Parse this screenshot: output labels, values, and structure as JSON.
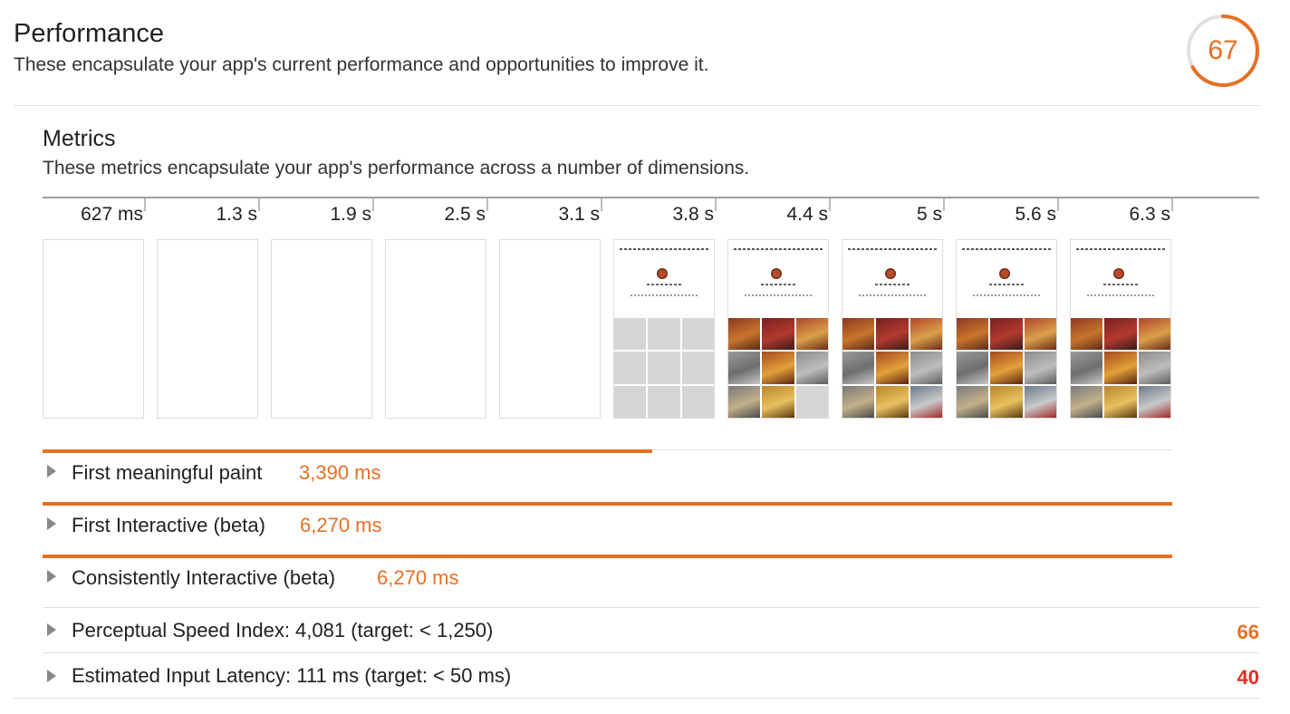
{
  "header": {
    "title": "Performance",
    "description": "These encapsulate your app's current performance and opportunities to improve it.",
    "score": "67",
    "score_fraction": 0.67,
    "score_color": "#e67024"
  },
  "metrics": {
    "title": "Metrics",
    "description": "These metrics encapsulate your app's performance across a number of dimensions."
  },
  "filmstrip": {
    "timestamps": [
      "627 ms",
      "1.3 s",
      "1.9 s",
      "2.5 s",
      "3.1 s",
      "3.8 s",
      "4.4 s",
      "5 s",
      "5.6 s",
      "6.3 s"
    ]
  },
  "timeline_metrics": [
    {
      "label": "First meaningful paint",
      "value": "3,390 ms",
      "fraction": 0.54
    },
    {
      "label": "First Interactive (beta)",
      "value": "6,270 ms",
      "fraction": 1.0
    },
    {
      "label": "Consistently Interactive (beta)",
      "value": "6,270 ms",
      "fraction": 1.0
    }
  ],
  "scored_metrics": [
    {
      "label": "Perceptual Speed Index: 4,081 (target: < 1,250)",
      "score": "66",
      "color": "#e67024"
    },
    {
      "label": "Estimated Input Latency: 111 ms (target: < 50 ms)",
      "score": "40",
      "color": "#e0301e"
    }
  ],
  "icons": {
    "expand": "caret-right-icon"
  }
}
